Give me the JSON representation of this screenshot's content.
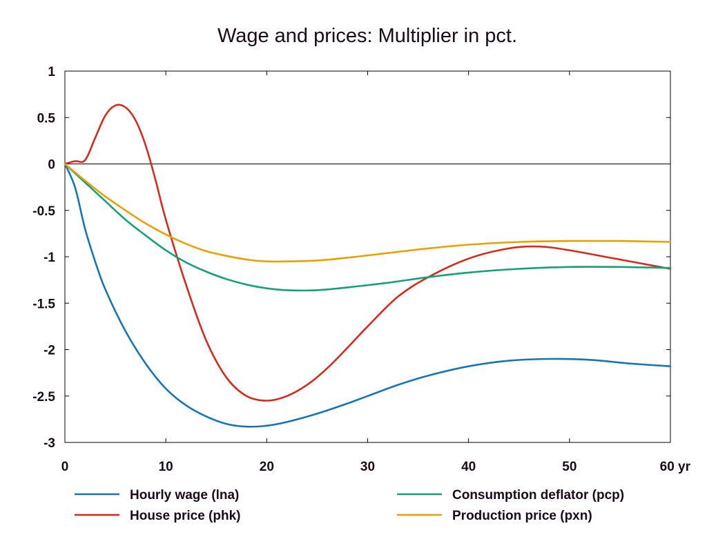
{
  "chart_data": {
    "type": "line",
    "title": "Wage and prices: Multiplier in pct.",
    "xlabel": "",
    "ylabel": "",
    "x_unit_label": "yr",
    "xlim": [
      0,
      60
    ],
    "ylim": [
      -3,
      1
    ],
    "x_ticks": [
      0,
      10,
      20,
      30,
      40,
      50,
      60
    ],
    "x_tick_labels": [
      "0",
      "10",
      "20",
      "30",
      "40",
      "50",
      "60 yr"
    ],
    "y_ticks": [
      1,
      0.5,
      0,
      -0.5,
      -1,
      -1.5,
      -2,
      -2.5,
      -3
    ],
    "y_tick_labels": [
      "1",
      "0.5",
      "0",
      "-0.5",
      "-1",
      "-1.5",
      "-2",
      "-2.5",
      "-3"
    ],
    "grid": false,
    "zero_line": true,
    "legend_position": "bottom",
    "series": [
      {
        "name": "Hourly wage (lna)",
        "color": "#1474b4",
        "x": [
          0,
          1,
          2,
          3,
          4,
          6,
          8,
          10,
          12,
          14,
          16,
          18,
          20,
          22,
          25,
          28,
          30,
          33,
          36,
          40,
          44,
          48,
          52,
          56,
          60
        ],
        "y": [
          0,
          -0.25,
          -0.7,
          -1.05,
          -1.35,
          -1.8,
          -2.15,
          -2.42,
          -2.6,
          -2.72,
          -2.8,
          -2.83,
          -2.82,
          -2.78,
          -2.69,
          -2.58,
          -2.5,
          -2.38,
          -2.28,
          -2.18,
          -2.12,
          -2.1,
          -2.11,
          -2.15,
          -2.18
        ]
      },
      {
        "name": "House price (phk)",
        "color": "#d42a1c",
        "x": [
          0,
          1,
          2,
          3,
          4,
          5,
          6,
          7,
          8,
          9,
          10,
          12,
          14,
          16,
          18,
          20,
          22,
          24,
          26,
          28,
          30,
          33,
          36,
          40,
          44,
          47,
          50,
          55,
          60
        ],
        "y": [
          0,
          0.03,
          0.04,
          0.28,
          0.52,
          0.63,
          0.61,
          0.47,
          0.2,
          -0.18,
          -0.6,
          -1.3,
          -1.9,
          -2.3,
          -2.5,
          -2.55,
          -2.5,
          -2.38,
          -2.2,
          -1.98,
          -1.75,
          -1.43,
          -1.22,
          -1.02,
          -0.91,
          -0.89,
          -0.93,
          -1.03,
          -1.13
        ]
      },
      {
        "name": "Consumption deflator (pcp)",
        "color": "#14a078",
        "x": [
          0,
          2,
          4,
          6,
          8,
          10,
          12,
          14,
          16,
          18,
          20,
          22,
          25,
          28,
          32,
          36,
          40,
          45,
          50,
          55,
          60
        ],
        "y": [
          0,
          -0.2,
          -0.4,
          -0.6,
          -0.77,
          -0.93,
          -1.06,
          -1.16,
          -1.24,
          -1.3,
          -1.34,
          -1.36,
          -1.36,
          -1.33,
          -1.28,
          -1.22,
          -1.17,
          -1.13,
          -1.11,
          -1.11,
          -1.12
        ]
      },
      {
        "name": "Production price (pxn)",
        "color": "#e8a000",
        "x": [
          0,
          2,
          4,
          6,
          8,
          10,
          12,
          14,
          16,
          18,
          20,
          22,
          25,
          28,
          32,
          36,
          40,
          45,
          50,
          55,
          60
        ],
        "y": [
          0,
          -0.18,
          -0.35,
          -0.5,
          -0.64,
          -0.76,
          -0.86,
          -0.94,
          -0.99,
          -1.03,
          -1.05,
          -1.05,
          -1.04,
          -1.01,
          -0.96,
          -0.91,
          -0.87,
          -0.84,
          -0.83,
          -0.83,
          -0.84
        ]
      }
    ]
  }
}
